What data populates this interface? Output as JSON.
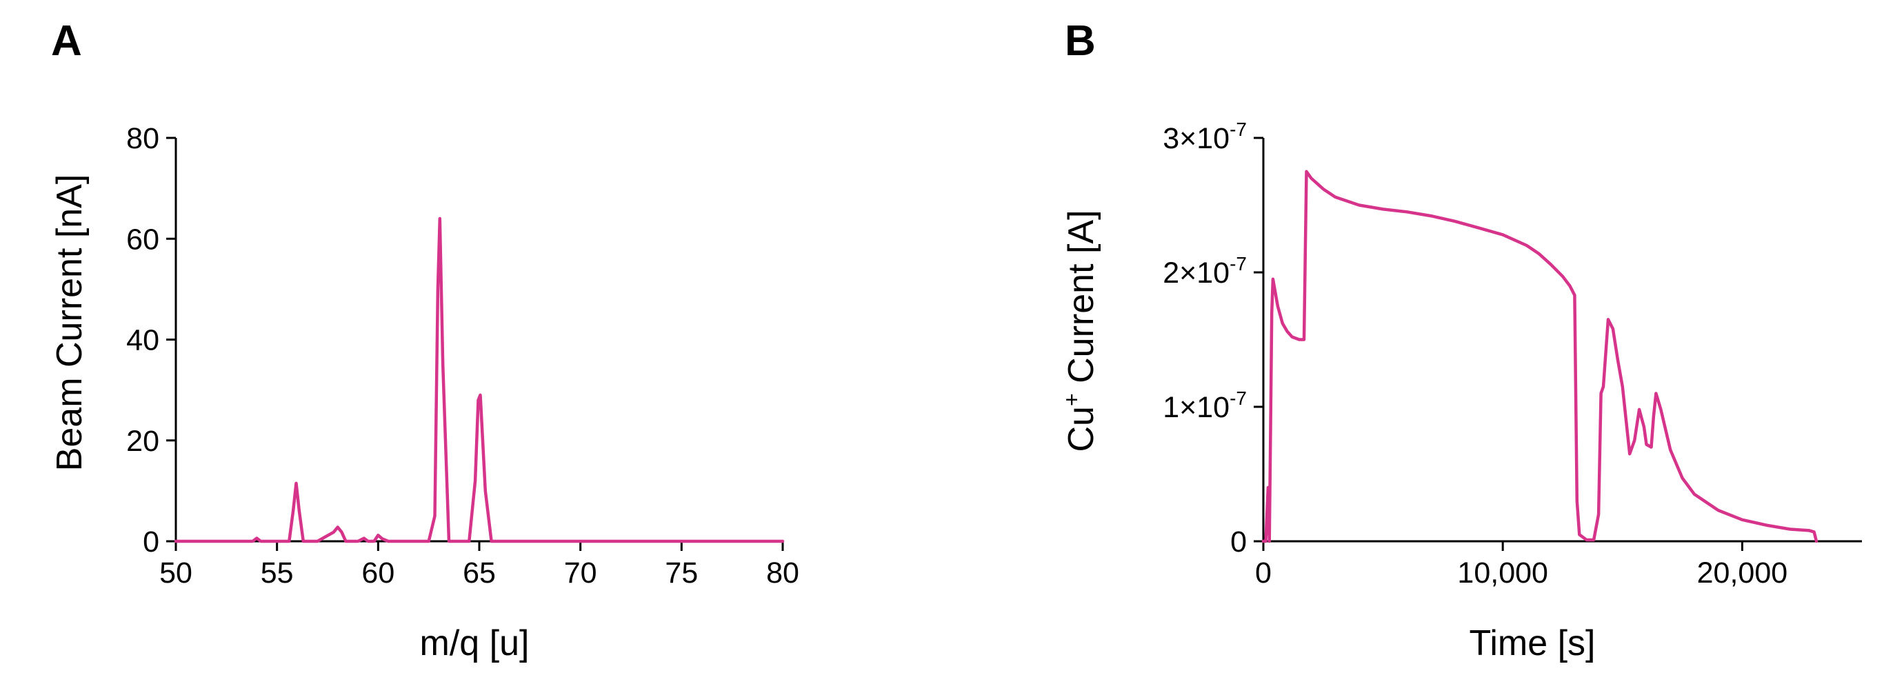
{
  "colors": {
    "series": "#d6338b",
    "axis": "#000000"
  },
  "chart_data": [
    {
      "panel": "A",
      "type": "line",
      "title": "",
      "xlabel": "m/q [u]",
      "ylabel": "Beam Current [nA]",
      "xlim": [
        50,
        80
      ],
      "ylim": [
        0,
        80
      ],
      "xticks": [
        50,
        55,
        60,
        65,
        70,
        75,
        80
      ],
      "xtick_labels": [
        "50",
        "55",
        "60",
        "65",
        "70",
        "75",
        "80"
      ],
      "yticks": [
        0,
        20,
        40,
        60,
        80
      ],
      "ytick_labels": [
        "0",
        "20",
        "40",
        "60",
        "80"
      ],
      "grid": false,
      "legend": "none",
      "series": [
        {
          "x": [
            50,
            53.8,
            54.0,
            54.2,
            54.5,
            55.6,
            55.8,
            55.95,
            56.1,
            56.3,
            57.0,
            57.8,
            58.0,
            58.2,
            58.4,
            59.0,
            59.3,
            59.5,
            59.8,
            60.0,
            60.2,
            60.5,
            62.5,
            62.8,
            62.95,
            63.05,
            63.2,
            63.5,
            64.5,
            64.8,
            64.95,
            65.05,
            65.3,
            65.6,
            70,
            75,
            80
          ],
          "y": [
            0,
            0,
            0.6,
            0,
            0,
            0,
            6,
            11.5,
            6,
            0,
            0,
            1.8,
            2.8,
            1.8,
            0,
            0,
            0.6,
            0,
            0,
            1.2,
            0.5,
            0,
            0,
            5,
            50,
            64,
            35,
            0,
            0,
            12,
            28,
            29,
            10,
            0,
            0,
            0,
            0
          ]
        }
      ]
    },
    {
      "panel": "B",
      "type": "line",
      "title": "",
      "xlabel": "Time [s]",
      "ylabel_main": "Cu",
      "ylabel_sup": "+",
      "ylabel_rest": " Current [A]",
      "xlim": [
        0,
        25000
      ],
      "ylim": [
        0,
        3e-07
      ],
      "xticks": [
        0,
        10000,
        20000
      ],
      "xtick_labels": [
        "0",
        "10,000",
        "20,000"
      ],
      "yticks": [
        0,
        1e-07,
        2e-07,
        3e-07
      ],
      "ytick_labels": [
        {
          "mant": "0",
          "exp": ""
        },
        {
          "mant": "1×10",
          "exp": "-7"
        },
        {
          "mant": "2×10",
          "exp": "-7"
        },
        {
          "mant": "3×10",
          "exp": "-7"
        }
      ],
      "grid": false,
      "legend": "none",
      "series": [
        {
          "x": [
            0,
            100,
            200,
            250,
            300,
            350,
            400,
            600,
            800,
            1000,
            1200,
            1500,
            1700,
            1800,
            2000,
            2500,
            3000,
            4000,
            5000,
            6000,
            7000,
            8000,
            9000,
            10000,
            11000,
            11500,
            12000,
            12500,
            12800,
            13000,
            13100,
            13200,
            13500,
            13800,
            14000,
            14100,
            14200,
            14400,
            14600,
            14800,
            15000,
            15300,
            15500,
            15700,
            15900,
            16000,
            16200,
            16300,
            16400,
            16600,
            17000,
            17500,
            18000,
            19000,
            20000,
            21000,
            22000,
            22800,
            23000,
            23100
          ],
          "y": [
            0,
            0,
            4e-08,
            0,
            8e-08,
            1.7e-07,
            1.95e-07,
            1.75e-07,
            1.62e-07,
            1.56e-07,
            1.52e-07,
            1.5e-07,
            1.5e-07,
            2.75e-07,
            2.7e-07,
            2.62e-07,
            2.56e-07,
            2.5e-07,
            2.47e-07,
            2.45e-07,
            2.42e-07,
            2.38e-07,
            2.33e-07,
            2.28e-07,
            2.2e-07,
            2.14e-07,
            2.06e-07,
            1.97e-07,
            1.9e-07,
            1.83e-07,
            3e-08,
            5e-09,
            1e-09,
            1e-09,
            2e-08,
            1.1e-07,
            1.15e-07,
            1.65e-07,
            1.58e-07,
            1.35e-07,
            1.15e-07,
            6.5e-08,
            7.5e-08,
            9.8e-08,
            8.5e-08,
            7.2e-08,
            7e-08,
            9.3e-08,
            1.1e-07,
            9.8e-08,
            6.8e-08,
            4.7e-08,
            3.5e-08,
            2.3e-08,
            1.6e-08,
            1.2e-08,
            9e-09,
            8e-09,
            7e-09,
            0
          ]
        }
      ]
    }
  ]
}
